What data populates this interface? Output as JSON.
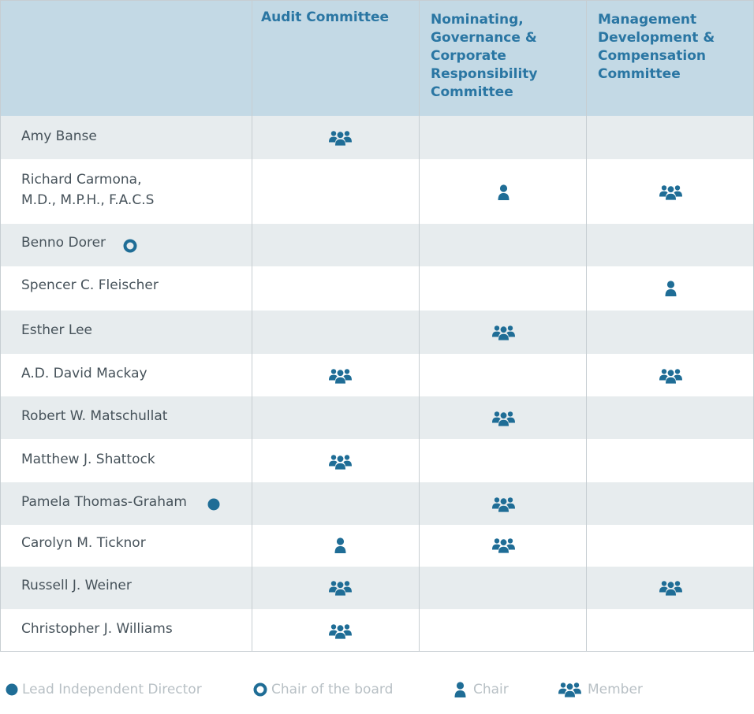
{
  "columns": [
    {
      "lines": [
        "Audit Committee"
      ]
    },
    {
      "lines": [
        "Nominating,",
        "Governance &",
        "Corporate",
        "Responsibility",
        "Committee"
      ]
    },
    {
      "lines": [
        "Management",
        "Development &",
        "Compensation",
        "Committee"
      ]
    }
  ],
  "rows": [
    {
      "name": [
        "Amy Banse"
      ],
      "marker": null,
      "cells": [
        "member",
        null,
        null
      ]
    },
    {
      "name": [
        "Richard Carmona,",
        "M.D., M.P.H., F.A.C.S"
      ],
      "marker": null,
      "cells": [
        null,
        "chair",
        "member"
      ]
    },
    {
      "name": [
        "Benno Dorer"
      ],
      "marker": "chair-of-board",
      "cells": [
        null,
        null,
        null
      ]
    },
    {
      "name": [
        "Spencer C. Fleischer"
      ],
      "marker": null,
      "cells": [
        null,
        null,
        "chair"
      ]
    },
    {
      "name": [
        "Esther Lee"
      ],
      "marker": null,
      "cells": [
        null,
        "member",
        null
      ]
    },
    {
      "name": [
        "A.D. David Mackay"
      ],
      "marker": null,
      "cells": [
        "member",
        null,
        "member"
      ]
    },
    {
      "name": [
        "Robert W. Matschullat"
      ],
      "marker": null,
      "cells": [
        null,
        "member",
        null
      ]
    },
    {
      "name": [
        "Matthew J. Shattock"
      ],
      "marker": null,
      "cells": [
        "member",
        null,
        null
      ]
    },
    {
      "name": [
        "Pamela Thomas-Graham"
      ],
      "marker": "lead-independent-director",
      "cells": [
        null,
        "member",
        null
      ]
    },
    {
      "name": [
        "Carolyn M. Ticknor"
      ],
      "marker": null,
      "cells": [
        "chair",
        "member",
        null
      ]
    },
    {
      "name": [
        "Russell J. Weiner"
      ],
      "marker": null,
      "cells": [
        "member",
        null,
        "member"
      ]
    },
    {
      "name": [
        "Christopher J. Williams"
      ],
      "marker": null,
      "cells": [
        "member",
        null,
        null
      ]
    }
  ],
  "legend": [
    {
      "icon": "lead-independent-director",
      "label": "Lead Independent Director"
    },
    {
      "icon": "chair-of-board",
      "label": "Chair of the board"
    },
    {
      "icon": "chair",
      "label": "Chair"
    },
    {
      "icon": "member",
      "label": "Member"
    }
  ],
  "colors": {
    "accent": "#1f6d96",
    "header_bg": "#c3d9e5",
    "header_text": "#2a76a3",
    "row_shade": "#e7ecee",
    "name_text": "#46525a",
    "legend_text": "#b8c0c5",
    "grid_line": "#c7ced2"
  }
}
